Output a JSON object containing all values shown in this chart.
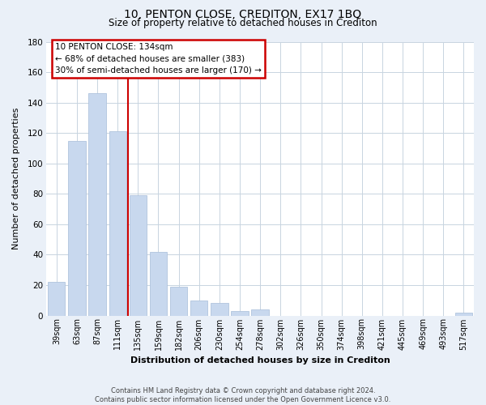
{
  "title": "10, PENTON CLOSE, CREDITON, EX17 1BQ",
  "subtitle": "Size of property relative to detached houses in Crediton",
  "xlabel": "Distribution of detached houses by size in Crediton",
  "ylabel": "Number of detached properties",
  "bar_labels": [
    "39sqm",
    "63sqm",
    "87sqm",
    "111sqm",
    "135sqm",
    "159sqm",
    "182sqm",
    "206sqm",
    "230sqm",
    "254sqm",
    "278sqm",
    "302sqm",
    "326sqm",
    "350sqm",
    "374sqm",
    "398sqm",
    "421sqm",
    "445sqm",
    "469sqm",
    "493sqm",
    "517sqm"
  ],
  "bar_values": [
    22,
    115,
    146,
    121,
    79,
    42,
    19,
    10,
    8,
    3,
    4,
    0,
    0,
    0,
    0,
    0,
    0,
    0,
    0,
    0,
    2
  ],
  "bar_color": "#c8d8ee",
  "bar_edge_color": "#b0c4de",
  "vline_color": "#cc0000",
  "annotation_lines": [
    "10 PENTON CLOSE: 134sqm",
    "← 68% of detached houses are smaller (383)",
    "30% of semi-detached houses are larger (170) →"
  ],
  "ylim": [
    0,
    180
  ],
  "yticks": [
    0,
    20,
    40,
    60,
    80,
    100,
    120,
    140,
    160,
    180
  ],
  "footer_lines": [
    "Contains HM Land Registry data © Crown copyright and database right 2024.",
    "Contains public sector information licensed under the Open Government Licence v3.0."
  ],
  "fig_bg_color": "#eaf0f8",
  "plot_bg_color": "#ffffff",
  "grid_color": "#c8d4e0"
}
